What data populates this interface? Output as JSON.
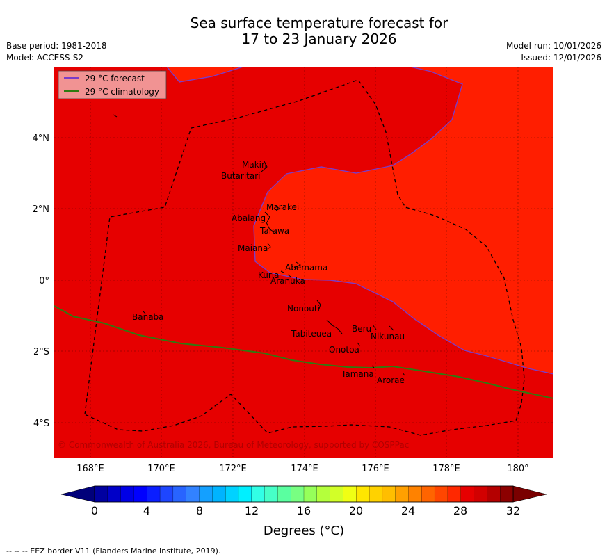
{
  "title": {
    "line1": "Sea surface temperature forecast for",
    "line2": "17 to 23 January 2026"
  },
  "meta": {
    "base_period": "Base period: 1981-2018",
    "model": "Model: ACCESS-S2",
    "model_run": "Model run: 10/01/2026",
    "issued": "Issued: 12/01/2026"
  },
  "legend": {
    "forecast": "29 °C  forecast",
    "climatology": "29 °C  climatology"
  },
  "axes": {
    "lon_labels": [
      "168°E",
      "170°E",
      "172°E",
      "174°E",
      "176°E",
      "178°E",
      "180°"
    ],
    "lat_labels": [
      "4°N",
      "2°N",
      "0°",
      "2°S",
      "4°S"
    ]
  },
  "islands": [
    {
      "name": "Makin"
    },
    {
      "name": "Butaritari"
    },
    {
      "name": "Marakei"
    },
    {
      "name": "Abaiang"
    },
    {
      "name": "Tarawa"
    },
    {
      "name": "Maiana"
    },
    {
      "name": "Abemama"
    },
    {
      "name": "Kuria"
    },
    {
      "name": "Aranuka"
    },
    {
      "name": "Nonouti"
    },
    {
      "name": "Banaba"
    },
    {
      "name": "Tabiteuea"
    },
    {
      "name": "Beru"
    },
    {
      "name": "Nikunau"
    },
    {
      "name": "Onotoa"
    },
    {
      "name": "Tamana"
    },
    {
      "name": "Arorae"
    }
  ],
  "copyright": "© Commonwealth of Australia 2026, Bureau of Meteorology, supported by COSPPac",
  "colorbar": {
    "label": "Degrees (°C)",
    "ticks": [
      "0",
      "4",
      "8",
      "12",
      "16",
      "20",
      "24",
      "28",
      "32"
    ]
  },
  "footer": "--  --  -- EEZ border V11 (Flanders Marine Institute, 2019).",
  "colors": {
    "forecast_line": "#7a3cc8",
    "climatology_line": "#2f7a10",
    "sea_warm": "#e60000",
    "sea_warmer": "#ff1e00"
  }
}
